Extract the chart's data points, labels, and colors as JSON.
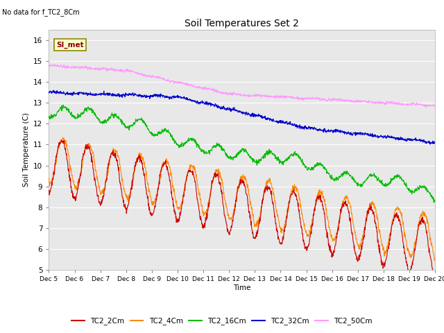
{
  "title": "Soil Temperatures Set 2",
  "subtitle": "No data for f_TC2_8Cm",
  "ylabel": "Soil Temperature (C)",
  "xlabel": "Time",
  "annotation": "SI_met",
  "ylim": [
    5.0,
    16.5
  ],
  "yticks": [
    5.0,
    6.0,
    7.0,
    8.0,
    9.0,
    10.0,
    11.0,
    12.0,
    13.0,
    14.0,
    15.0,
    16.0
  ],
  "xticklabels": [
    "Dec 5",
    "Dec 6",
    "Dec 7",
    "Dec 8",
    "Dec 9",
    "Dec 10",
    "Dec 11",
    "Dec 12",
    "Dec 13",
    "Dec 14",
    "Dec 15",
    "Dec 16",
    "Dec 17",
    "Dec 18",
    "Dec 19",
    "Dec 20"
  ],
  "colors": {
    "TC2_2Cm": "#cc0000",
    "TC2_4Cm": "#ff8800",
    "TC2_16Cm": "#00bb00",
    "TC2_32Cm": "#0000cc",
    "TC2_50Cm": "#ff99ff"
  },
  "bg_color": "#e8e8e8",
  "legend_entries": [
    "TC2_2Cm",
    "TC2_4Cm",
    "TC2_16Cm",
    "TC2_32Cm",
    "TC2_50Cm"
  ],
  "figsize": [
    6.4,
    4.8
  ],
  "dpi": 100
}
